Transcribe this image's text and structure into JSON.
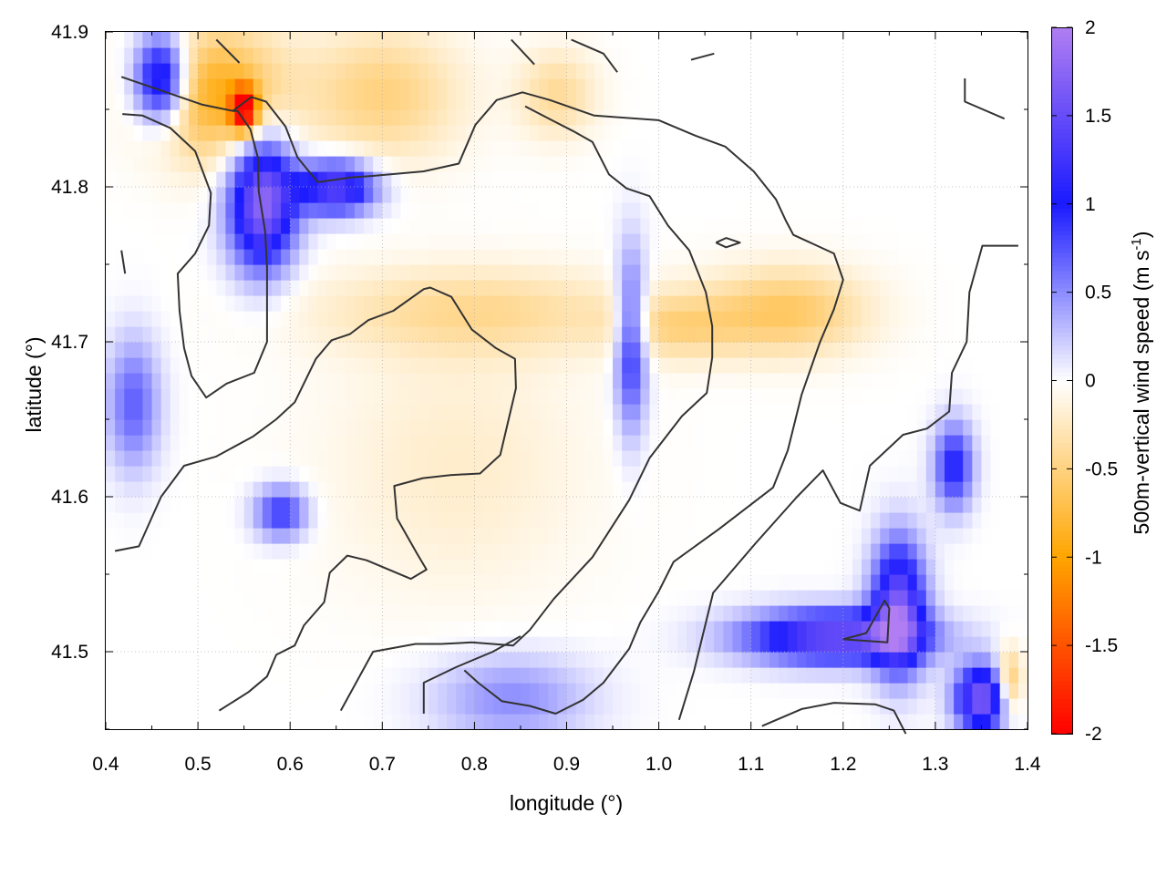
{
  "chart_data": {
    "type": "heatmap",
    "xlabel": "longitude (°)",
    "ylabel": "latitude (°)",
    "colorbar_label": "500m-vertical wind speed (m s",
    "colorbar_label_sup": "-1",
    "colorbar_label_end": ")",
    "xlim": [
      0.4,
      1.4
    ],
    "ylim": [
      41.45,
      41.9
    ],
    "xticks": [
      0.4,
      0.5,
      0.6,
      0.7,
      0.8,
      0.9,
      1.0,
      1.1,
      1.2,
      1.3,
      1.4
    ],
    "xtick_labels": [
      "0.4",
      "0.5",
      "0.6",
      "0.7",
      "0.8",
      "0.9",
      "1.0",
      "1.1",
      "1.2",
      "1.3",
      "1.4"
    ],
    "yticks": [
      41.5,
      41.6,
      41.7,
      41.8,
      41.9
    ],
    "ytick_labels": [
      "41.5",
      "41.6",
      "41.7",
      "41.8",
      "41.9"
    ],
    "clim": [
      -2,
      2
    ],
    "colorbar_ticks": [
      2,
      1.5,
      1,
      0.5,
      0,
      -0.5,
      -1,
      -1.5,
      -2
    ],
    "colorbar_tick_labels": [
      "2",
      "1.5",
      "1",
      "0.5",
      "0",
      "-0.5",
      "-1",
      "-1.5",
      "-2"
    ],
    "grid": true,
    "colors": {
      "positive_high": "#b07ef2",
      "positive_mid": "#1a1aff",
      "zero": "#ffffff",
      "negative_mid": "#ffa500",
      "negative_high": "#ff0000",
      "contour": "#333333"
    },
    "features": [
      {
        "type": "updraft",
        "lon": 0.57,
        "lat": 41.79,
        "value": 1.8,
        "sx": 0.025,
        "sy": 0.03
      },
      {
        "type": "updraft",
        "lon": 0.46,
        "lat": 41.87,
        "value": 1.5,
        "sx": 0.02,
        "sy": 0.02
      },
      {
        "type": "updraft",
        "lon": 0.65,
        "lat": 41.8,
        "value": 1.5,
        "sx": 0.03,
        "sy": 0.012
      },
      {
        "type": "updraft",
        "lon": 0.97,
        "lat": 41.7,
        "value": 1.0,
        "sx": 0.012,
        "sy": 0.04
      },
      {
        "type": "updraft",
        "lon": 0.59,
        "lat": 41.59,
        "value": 0.9,
        "sx": 0.02,
        "sy": 0.012
      },
      {
        "type": "updraft",
        "lon": 0.43,
        "lat": 41.66,
        "value": 0.7,
        "sx": 0.02,
        "sy": 0.03
      },
      {
        "type": "updraft",
        "lon": 1.19,
        "lat": 41.51,
        "value": 1.6,
        "sx": 0.07,
        "sy": 0.012
      },
      {
        "type": "updraft",
        "lon": 1.26,
        "lat": 41.53,
        "value": 1.6,
        "sx": 0.02,
        "sy": 0.03
      },
      {
        "type": "updraft",
        "lon": 1.35,
        "lat": 41.47,
        "value": 1.7,
        "sx": 0.02,
        "sy": 0.015
      },
      {
        "type": "updraft",
        "lon": 1.32,
        "lat": 41.62,
        "value": 1.0,
        "sx": 0.015,
        "sy": 0.02
      },
      {
        "type": "updraft",
        "lon": 0.84,
        "lat": 41.47,
        "value": 0.5,
        "sx": 0.06,
        "sy": 0.02
      },
      {
        "type": "downdraft",
        "lon": 0.52,
        "lat": 41.86,
        "value": -0.9,
        "sx": 0.05,
        "sy": 0.03
      },
      {
        "type": "downdraft",
        "lon": 0.55,
        "lat": 41.85,
        "value": -1.8,
        "sx": 0.01,
        "sy": 0.01
      },
      {
        "type": "downdraft",
        "lon": 0.7,
        "lat": 41.86,
        "value": -0.5,
        "sx": 0.06,
        "sy": 0.03
      },
      {
        "type": "downdraft",
        "lon": 0.8,
        "lat": 41.72,
        "value": -0.4,
        "sx": 0.12,
        "sy": 0.02
      },
      {
        "type": "downdraft",
        "lon": 1.14,
        "lat": 41.72,
        "value": -0.6,
        "sx": 0.06,
        "sy": 0.02
      },
      {
        "type": "downdraft",
        "lon": 1.02,
        "lat": 41.71,
        "value": -0.4,
        "sx": 0.05,
        "sy": 0.015
      },
      {
        "type": "downdraft",
        "lon": 1.38,
        "lat": 41.48,
        "value": -0.8,
        "sx": 0.01,
        "sy": 0.015
      },
      {
        "type": "downdraft",
        "lon": 0.78,
        "lat": 41.62,
        "value": -0.2,
        "sx": 0.1,
        "sy": 0.06
      },
      {
        "type": "downdraft",
        "lon": 0.89,
        "lat": 41.86,
        "value": -0.4,
        "sx": 0.03,
        "sy": 0.02
      }
    ],
    "contours": [
      [
        [
          0.417,
          41.871
        ],
        [
          0.505,
          41.853
        ],
        [
          0.538,
          41.849
        ],
        [
          0.558,
          41.858
        ],
        [
          0.574,
          41.855
        ],
        [
          0.595,
          41.839
        ],
        [
          0.608,
          41.819
        ],
        [
          0.63,
          41.803
        ],
        [
          0.665,
          41.806
        ],
        [
          0.688,
          41.807
        ],
        [
          0.745,
          41.81
        ],
        [
          0.783,
          41.815
        ],
        [
          0.801,
          41.84
        ],
        [
          0.824,
          41.856
        ],
        [
          0.852,
          41.861
        ],
        [
          0.882,
          41.856
        ],
        [
          0.93,
          41.846
        ],
        [
          1.0,
          41.843
        ],
        [
          1.04,
          41.833
        ],
        [
          1.072,
          41.826
        ],
        [
          1.103,
          41.81
        ],
        [
          1.127,
          41.792
        ],
        [
          1.138,
          41.778
        ],
        [
          1.146,
          41.769
        ],
        [
          1.19,
          41.757
        ],
        [
          1.2,
          41.74
        ],
        [
          1.19,
          41.721
        ],
        [
          1.175,
          41.7
        ],
        [
          1.155,
          41.666
        ],
        [
          1.14,
          41.63
        ],
        [
          1.124,
          41.606
        ],
        [
          1.065,
          41.579
        ],
        [
          1.016,
          41.558
        ],
        [
          1.0,
          41.539
        ],
        [
          0.98,
          41.519
        ],
        [
          0.968,
          41.502
        ],
        [
          0.94,
          41.48
        ],
        [
          0.918,
          41.469
        ],
        [
          0.888,
          41.46
        ],
        [
          0.86,
          41.465
        ],
        [
          0.83,
          41.468
        ],
        [
          0.804,
          41.48
        ],
        [
          0.789,
          41.488
        ]
      ],
      [
        [
          0.41,
          41.565
        ],
        [
          0.436,
          41.568
        ],
        [
          0.46,
          41.6
        ],
        [
          0.485,
          41.62
        ],
        [
          0.52,
          41.626
        ],
        [
          0.56,
          41.639
        ],
        [
          0.585,
          41.65
        ],
        [
          0.605,
          41.661
        ],
        [
          0.628,
          41.689
        ],
        [
          0.645,
          41.701
        ],
        [
          0.665,
          41.705
        ],
        [
          0.685,
          41.714
        ],
        [
          0.712,
          41.72
        ],
        [
          0.745,
          41.734
        ],
        [
          0.752,
          41.735
        ],
        [
          0.775,
          41.729
        ],
        [
          0.797,
          41.708
        ],
        [
          0.823,
          41.696
        ],
        [
          0.844,
          41.689
        ],
        [
          0.845,
          41.67
        ],
        [
          0.828,
          41.627
        ],
        [
          0.806,
          41.615
        ],
        [
          0.774,
          41.614
        ],
        [
          0.744,
          41.612
        ],
        [
          0.713,
          41.607
        ],
        [
          0.716,
          41.586
        ],
        [
          0.738,
          41.563
        ],
        [
          0.748,
          41.553
        ],
        [
          0.731,
          41.547
        ],
        [
          0.683,
          41.559
        ],
        [
          0.662,
          41.562
        ],
        [
          0.643,
          41.551
        ],
        [
          0.637,
          41.532
        ],
        [
          0.615,
          41.517
        ],
        [
          0.605,
          41.504
        ],
        [
          0.585,
          41.498
        ],
        [
          0.575,
          41.484
        ],
        [
          0.555,
          41.474
        ],
        [
          0.523,
          41.462
        ]
      ],
      [
        [
          0.418,
          41.847
        ],
        [
          0.44,
          41.846
        ],
        [
          0.47,
          41.838
        ],
        [
          0.497,
          41.823
        ],
        [
          0.514,
          41.796
        ],
        [
          0.512,
          41.775
        ],
        [
          0.497,
          41.757
        ],
        [
          0.478,
          41.744
        ],
        [
          0.48,
          41.72
        ],
        [
          0.485,
          41.696
        ],
        [
          0.493,
          41.678
        ],
        [
          0.509,
          41.664
        ],
        [
          0.531,
          41.673
        ],
        [
          0.561,
          41.68
        ],
        [
          0.575,
          41.7
        ],
        [
          0.575,
          41.748
        ],
        [
          0.573,
          41.771
        ],
        [
          0.566,
          41.797
        ],
        [
          0.565,
          41.819
        ],
        [
          0.557,
          41.837
        ],
        [
          0.543,
          41.849
        ],
        [
          0.538,
          41.849
        ]
      ],
      [
        [
          0.417,
          41.759
        ],
        [
          0.421,
          41.744
        ]
      ],
      [
        [
          0.655,
          41.462
        ],
        [
          0.69,
          41.5
        ],
        [
          0.736,
          41.505
        ],
        [
          0.764,
          41.505
        ],
        [
          0.797,
          41.506
        ],
        [
          0.842,
          41.504
        ],
        [
          0.86,
          41.514
        ],
        [
          0.886,
          41.534
        ],
        [
          0.928,
          41.561
        ],
        [
          0.968,
          41.598
        ],
        [
          0.99,
          41.625
        ],
        [
          1.025,
          41.652
        ],
        [
          1.052,
          41.667
        ],
        [
          1.058,
          41.69
        ],
        [
          1.058,
          41.71
        ],
        [
          1.051,
          41.732
        ],
        [
          1.033,
          41.759
        ],
        [
          1.01,
          41.775
        ],
        [
          0.99,
          41.794
        ],
        [
          0.965,
          41.799
        ],
        [
          0.946,
          41.808
        ],
        [
          0.928,
          41.829
        ],
        [
          0.907,
          41.836
        ],
        [
          0.884,
          41.843
        ],
        [
          0.855,
          41.852
        ]
      ],
      [
        [
          0.745,
          41.46
        ],
        [
          0.745,
          41.48
        ],
        [
          0.78,
          41.49
        ],
        [
          0.82,
          41.5
        ],
        [
          0.85,
          41.51
        ]
      ],
      [
        [
          1.062,
          41.764
        ],
        [
          1.073,
          41.767
        ],
        [
          1.088,
          41.764
        ],
        [
          1.073,
          41.761
        ],
        [
          1.062,
          41.764
        ]
      ],
      [
        [
          1.022,
          41.456
        ],
        [
          1.038,
          41.487
        ],
        [
          1.059,
          41.538
        ],
        [
          1.105,
          41.57
        ],
        [
          1.15,
          41.6
        ],
        [
          1.178,
          41.617
        ],
        [
          1.197,
          41.596
        ],
        [
          1.218,
          41.591
        ],
        [
          1.229,
          41.62
        ],
        [
          1.265,
          41.64
        ],
        [
          1.291,
          41.644
        ],
        [
          1.315,
          41.655
        ],
        [
          1.318,
          41.68
        ],
        [
          1.334,
          41.7
        ],
        [
          1.337,
          41.732
        ],
        [
          1.351,
          41.762
        ],
        [
          1.39,
          41.762
        ]
      ],
      [
        [
          1.112,
          41.452
        ],
        [
          1.155,
          41.463
        ],
        [
          1.19,
          41.467
        ],
        [
          1.235,
          41.466
        ],
        [
          1.255,
          41.462
        ],
        [
          1.268,
          41.447
        ]
      ],
      [
        [
          1.2,
          41.508
        ],
        [
          1.248,
          41.506
        ],
        [
          1.25,
          41.528
        ],
        [
          1.245,
          41.533
        ],
        [
          1.225,
          41.512
        ],
        [
          1.2,
          41.508
        ]
      ],
      [
        [
          1.332,
          41.87
        ],
        [
          1.332,
          41.855
        ],
        [
          1.375,
          41.844
        ]
      ],
      [
        [
          0.52,
          41.895
        ],
        [
          0.545,
          41.88
        ]
      ],
      [
        [
          0.84,
          41.895
        ],
        [
          0.865,
          41.879
        ]
      ],
      [
        [
          0.905,
          41.895
        ],
        [
          0.94,
          41.886
        ],
        [
          0.955,
          41.874
        ]
      ],
      [
        [
          1.035,
          41.882
        ],
        [
          1.06,
          41.886
        ]
      ]
    ]
  }
}
